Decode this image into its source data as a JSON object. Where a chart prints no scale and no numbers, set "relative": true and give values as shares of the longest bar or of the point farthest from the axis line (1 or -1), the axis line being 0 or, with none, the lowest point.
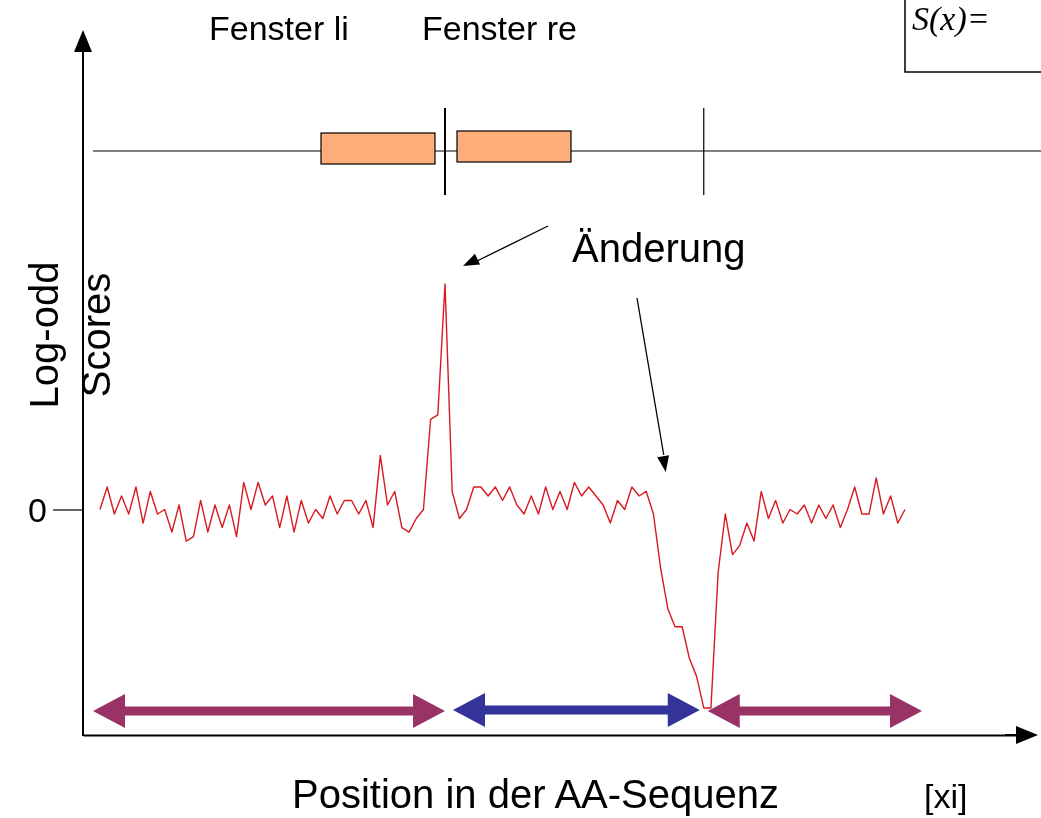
{
  "chart_data": {
    "type": "line",
    "relative": true,
    "xlabel": "Position in der AA-Sequenz",
    "ylabel": "Log-odd Scores",
    "categories": [
      null,
      null,
      null,
      null,
      null,
      null,
      null,
      null,
      null,
      null,
      null,
      null,
      null,
      null,
      null,
      null,
      null,
      null,
      null,
      null,
      null,
      null,
      null,
      null,
      null,
      null,
      null,
      null,
      null,
      null,
      null,
      null,
      null,
      null,
      null,
      null,
      null,
      null,
      null,
      null,
      null,
      null,
      null,
      null,
      null,
      null,
      null,
      null,
      null,
      null,
      null,
      null,
      null,
      null,
      null,
      null,
      null,
      null,
      null,
      null,
      null,
      null,
      null,
      null,
      null,
      null,
      null,
      null,
      null,
      null,
      null,
      null,
      null,
      null,
      null,
      null,
      null,
      null,
      null,
      null,
      null,
      null,
      null,
      null,
      null,
      null,
      null,
      null,
      null,
      null,
      null,
      null,
      null,
      null,
      null,
      null,
      null,
      null,
      null,
      null,
      null,
      null,
      null,
      null,
      null,
      null,
      null,
      null,
      null,
      null,
      null,
      null,
      null
    ],
    "series": [
      {
        "color": "#d71920",
        "values": [
          0.5,
          0.55,
          0.49,
          0.53,
          0.49,
          0.55,
          0.47,
          0.54,
          0.49,
          0.5,
          0.45,
          0.51,
          0.43,
          0.44,
          0.52,
          0.45,
          0.51,
          0.46,
          0.51,
          0.44,
          0.56,
          0.5,
          0.56,
          0.51,
          0.53,
          0.46,
          0.53,
          0.45,
          0.52,
          0.47,
          0.5,
          0.48,
          0.53,
          0.49,
          0.52,
          0.52,
          0.49,
          0.52,
          0.46,
          0.62,
          0.51,
          0.54,
          0.46,
          0.45,
          0.48,
          0.5,
          0.7,
          0.71,
          1,
          0.54,
          0.48,
          0.5,
          0.55,
          0.55,
          0.53,
          0.55,
          0.52,
          0.55,
          0.51,
          0.49,
          0.53,
          0.49,
          0.55,
          0.5,
          0.54,
          0.5,
          0.56,
          0.53,
          0.55,
          0.53,
          0.51,
          0.47,
          0.52,
          0.5,
          0.55,
          0.53,
          0.54,
          0.49,
          0.37,
          0.28,
          0.24,
          0.24,
          0.17,
          0.13,
          0.06,
          0.06,
          0.36,
          0.49,
          0.4,
          0.42,
          0.47,
          0.43,
          0.54,
          0.48,
          0.52,
          0.47,
          0.5,
          0.49,
          0.51,
          0.47,
          0.51,
          0.48,
          0.51,
          0.46,
          0.5,
          0.55,
          0.49,
          0.49,
          0.57,
          0.49,
          0.53,
          0.47,
          0.5
        ]
      }
    ],
    "annotations": [
      "0",
      "Fenster li",
      "Fenster re",
      "Änderung",
      "[xi]",
      "S(x)="
    ]
  }
}
